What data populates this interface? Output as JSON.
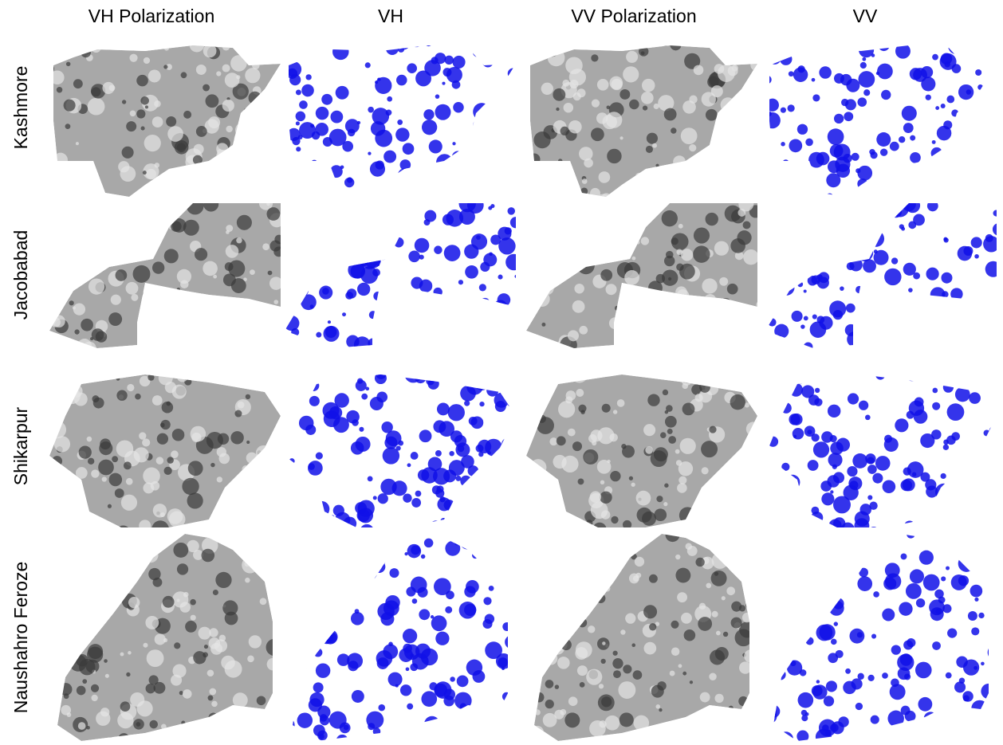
{
  "columns": [
    "VH Polarization",
    "VH",
    "VV Polarization",
    "VV"
  ],
  "rows": [
    "Kashmore",
    "Jacobabad",
    "Shikarpur",
    "Naushahro Feroze"
  ]
}
